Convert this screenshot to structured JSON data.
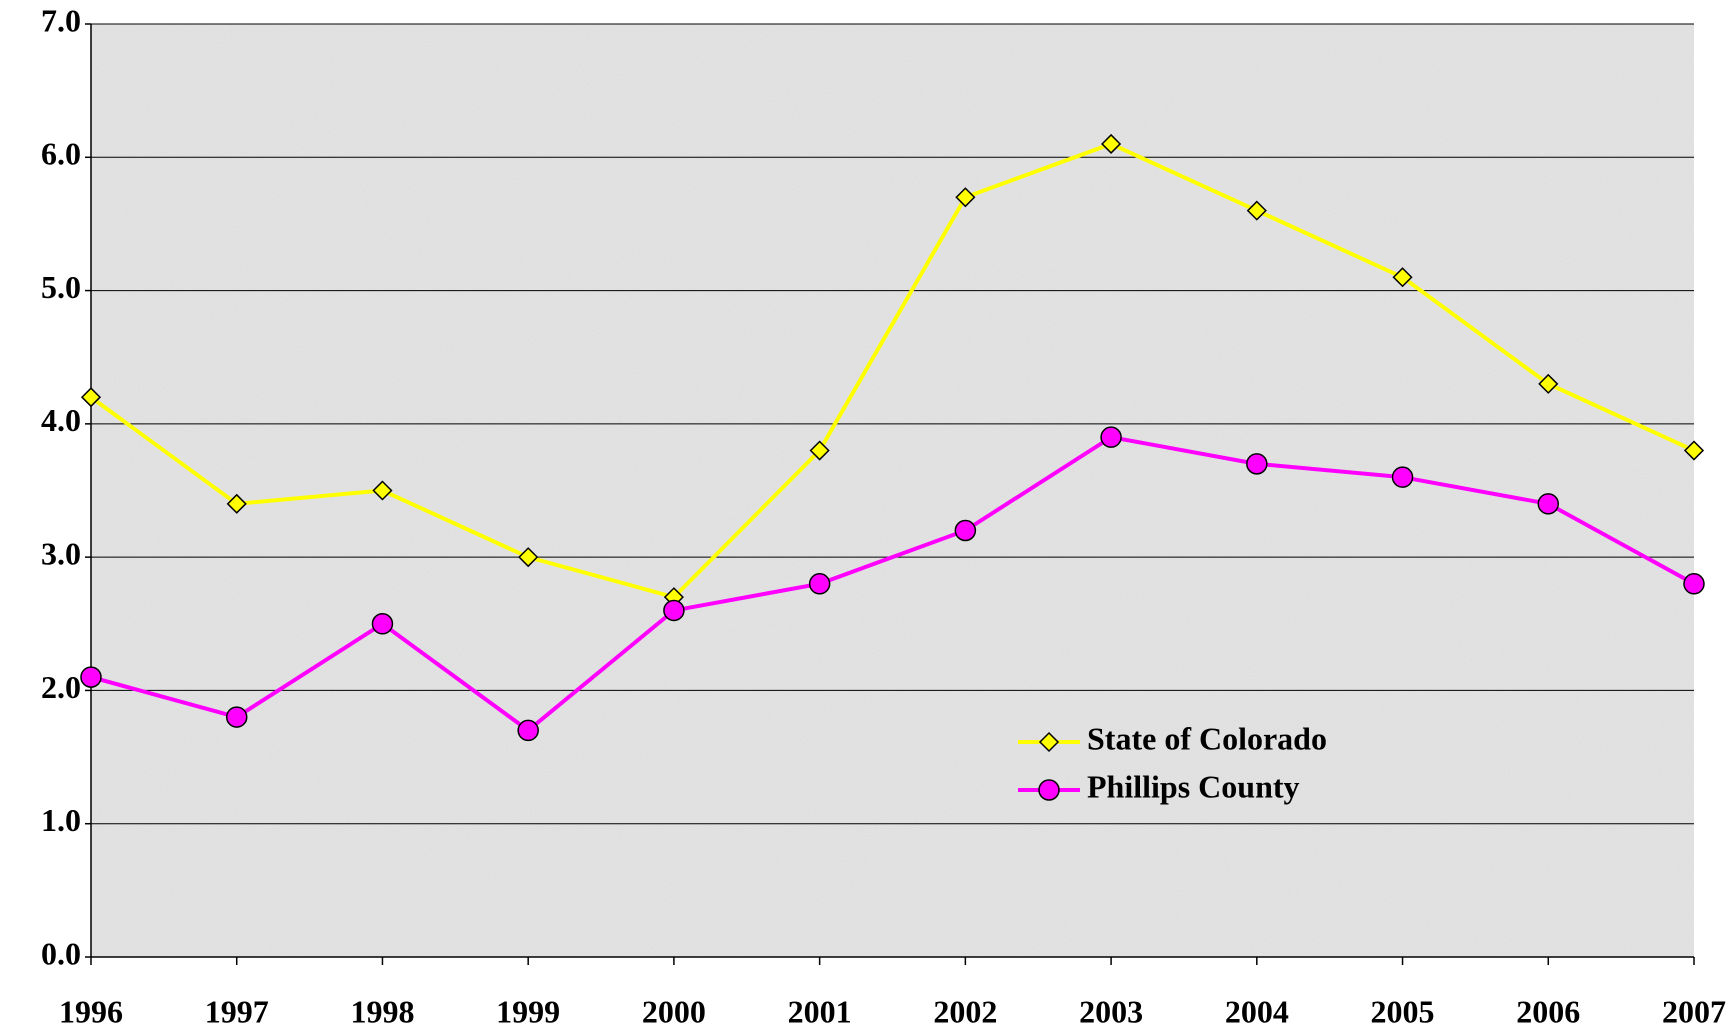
{
  "chart_data": {
    "type": "line",
    "categories": [
      "1996",
      "1997",
      "1998",
      "1999",
      "2000",
      "2001",
      "2002",
      "2003",
      "2004",
      "2005",
      "2006",
      "2007"
    ],
    "series": [
      {
        "name": "State of Colorado",
        "color": "#ffff00",
        "marker": "diamond",
        "values": [
          4.2,
          3.4,
          3.5,
          3.0,
          2.7,
          3.8,
          5.7,
          6.1,
          5.6,
          5.1,
          4.3,
          3.8
        ]
      },
      {
        "name": "Phillips County",
        "color": "#ff00ff",
        "marker": "circle",
        "values": [
          2.1,
          1.8,
          2.5,
          1.7,
          2.6,
          2.8,
          3.2,
          3.9,
          3.7,
          3.6,
          3.4,
          2.8
        ]
      }
    ],
    "ylim": [
      0,
      7
    ],
    "yticks": [
      {
        "value": 0,
        "label": "0.0"
      },
      {
        "value": 1,
        "label": "1.0"
      },
      {
        "value": 2,
        "label": "2.0"
      },
      {
        "value": 3,
        "label": "3.0"
      },
      {
        "value": 4,
        "label": "4.0"
      },
      {
        "value": 5,
        "label": "5.0"
      },
      {
        "value": 6,
        "label": "6.0"
      },
      {
        "value": 7,
        "label": "7.0"
      }
    ],
    "grid": true,
    "legend": "lower right"
  }
}
